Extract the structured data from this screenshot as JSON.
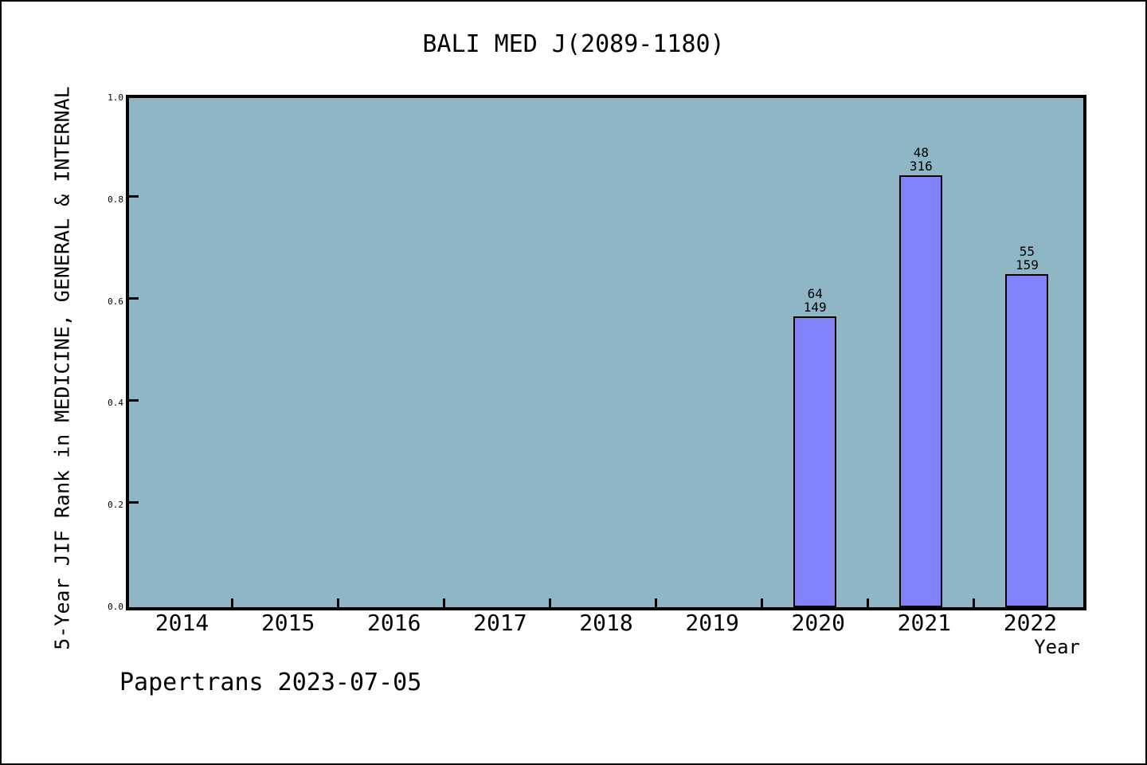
{
  "footer": "Papertrans 2023-07-05",
  "chart_data": {
    "type": "bar",
    "title": "BALI MED J(2089-1180)",
    "xlabel": "Year",
    "ylabel": "5-Year JIF Rank in MEDICINE, GENERAL & INTERNAL",
    "categories": [
      "2014",
      "2015",
      "2016",
      "2017",
      "2018",
      "2019",
      "2020",
      "2021",
      "2022"
    ],
    "yticks": [
      {
        "label": "1.0",
        "value": 1.0
      },
      {
        "label": "0.8",
        "value": 0.8
      },
      {
        "label": "0.6",
        "value": 0.6
      },
      {
        "label": "0.4",
        "value": 0.4
      },
      {
        "label": "0.2",
        "value": 0.2
      },
      {
        "label": "0.0",
        "value": 0.0
      }
    ],
    "ylim": [
      0,
      1
    ],
    "grid": false,
    "legend": "none",
    "bars": [
      {
        "year": "2020",
        "rank": "64",
        "total": "149",
        "value": 0.5705
      },
      {
        "year": "2021",
        "rank": "48",
        "total": "316",
        "value": 0.8481
      },
      {
        "year": "2022",
        "rank": "55",
        "total": "159",
        "value": 0.6541
      }
    ],
    "colors": {
      "plot_bg": "#8eb6c5",
      "bar_fill": "#8181f8",
      "bar_border": "#000000",
      "axis": "#000000",
      "page_bg": "#ffffff"
    }
  }
}
